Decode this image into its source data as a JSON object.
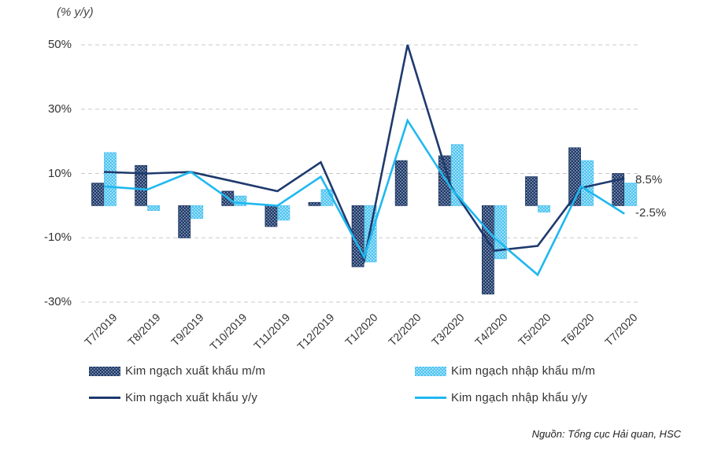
{
  "chart_data": {
    "type": "bar",
    "unit_label": "(% y/y)",
    "categories": [
      "T7/2019",
      "T8/2019",
      "T9/2019",
      "T10/2019",
      "T11/2019",
      "T12/2019",
      "T1/2020",
      "T2/2020",
      "T3/2020",
      "T4/2020",
      "T5/2020",
      "T6/2020",
      "T7/2020"
    ],
    "yticks": [
      50,
      30,
      10,
      -10,
      -30
    ],
    "ytick_labels": [
      "50%",
      "30%",
      "10%",
      "-10%",
      "-30%"
    ],
    "ylim": [
      -30,
      50
    ],
    "grid": true,
    "series": [
      {
        "name": "Kim ngạch xuất khẩu m/m",
        "kind": "bar",
        "color": "#1f3864",
        "values": [
          7,
          12.5,
          -10,
          4.5,
          -6.5,
          1,
          -19,
          14,
          15.5,
          -27.5,
          9,
          18,
          10
        ]
      },
      {
        "name": "Kim ngạch nhập khẩu m/m",
        "kind": "bar",
        "color": "#5bc8f0",
        "values": [
          16.5,
          -1.5,
          -4,
          3,
          -4.5,
          5,
          -17.5,
          null,
          19,
          -16.5,
          -2,
          14,
          7
        ]
      },
      {
        "name": "Kim ngạch xuất khẩu y/y",
        "kind": "line",
        "color": "#1f3a6e",
        "values": [
          10.5,
          10,
          10.5,
          7.5,
          4.5,
          13.5,
          -17,
          50,
          6,
          -14,
          -12.5,
          5.5,
          8.5
        ]
      },
      {
        "name": "Kim ngạch nhập khẩu y/y",
        "kind": "line",
        "color": "#1fb8f0",
        "values": [
          6,
          5,
          10.5,
          1,
          0,
          9,
          -16,
          26.5,
          5.5,
          -10,
          -21.5,
          6,
          -2.5
        ]
      }
    ],
    "end_labels": [
      "8.5%",
      "-2.5%"
    ],
    "source": "Nguồn: Tổng cục Hải quan, HSC"
  }
}
